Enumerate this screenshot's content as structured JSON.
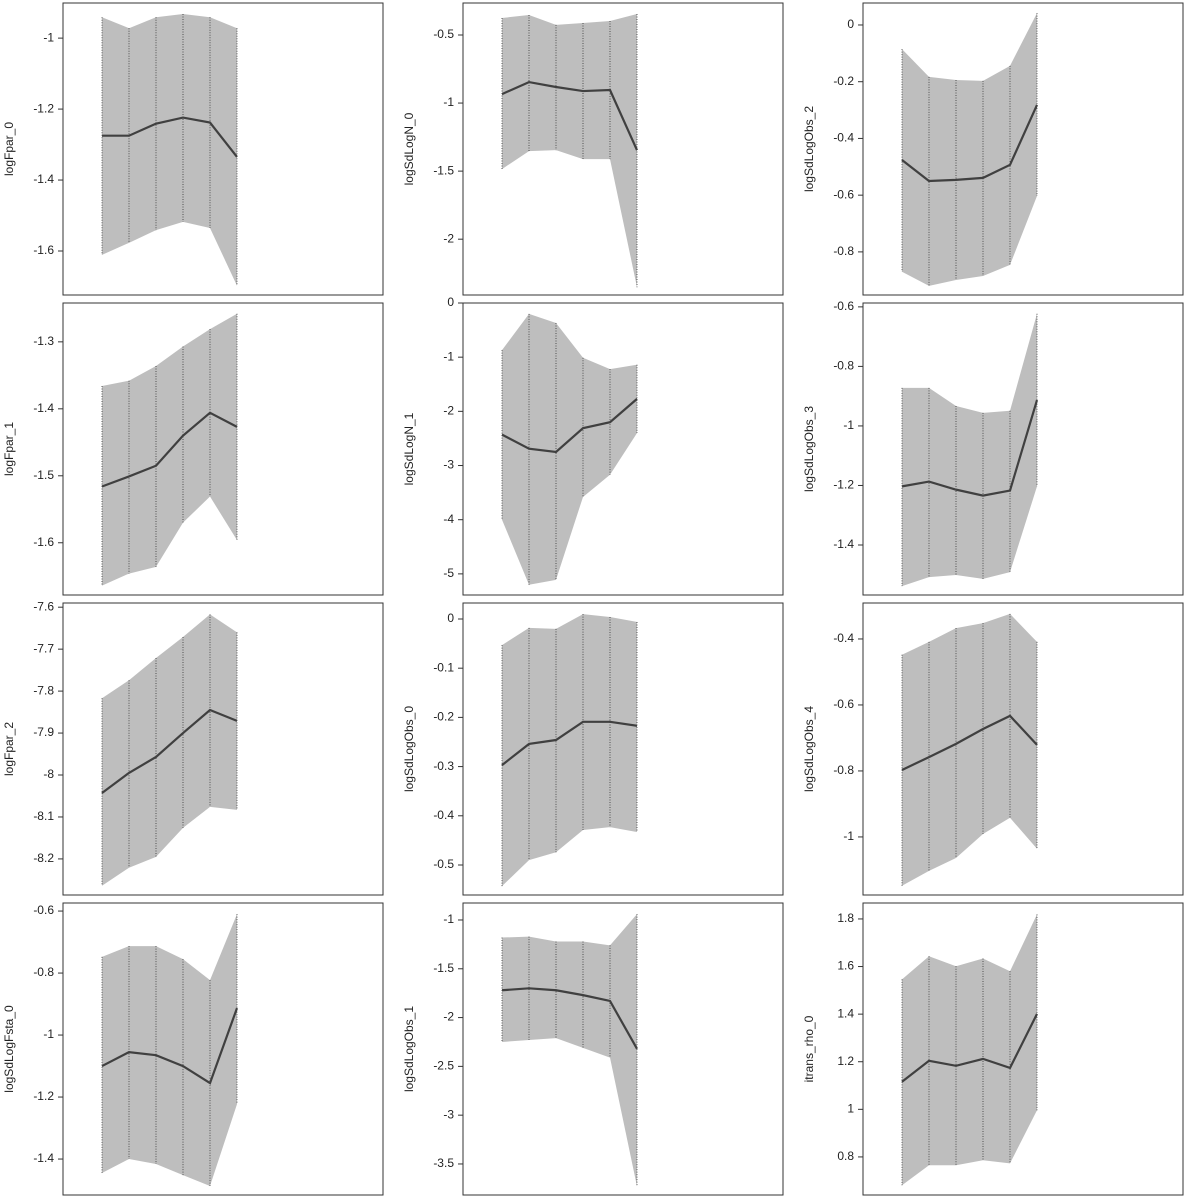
{
  "chart_data": [
    {
      "type": "band-line",
      "ylabel": "logFpar_0",
      "categories": [
        null,
        null,
        null,
        null,
        null,
        null
      ],
      "values": [
        -1.275,
        -1.275,
        -1.241,
        -1.224,
        -1.238,
        -1.335
      ],
      "upper": [
        -0.941,
        -0.972,
        -0.941,
        -0.932,
        -0.941,
        -0.972
      ],
      "lower": [
        -1.611,
        -1.577,
        -1.541,
        -1.518,
        -1.535,
        -1.698
      ],
      "ylim": [
        -1.724,
        -0.901
      ],
      "yticks": [
        -1.0,
        -1.2,
        -1.4,
        -1.6
      ],
      "color": "#404040",
      "band_color": "#bebebe"
    },
    {
      "type": "band-line",
      "ylabel": "logSdLogN_0",
      "categories": [
        null,
        null,
        null,
        null,
        null,
        null
      ],
      "values": [
        -0.934,
        -0.846,
        -0.882,
        -0.912,
        -0.904,
        -1.346
      ],
      "upper": [
        -0.375,
        -0.353,
        -0.426,
        -0.412,
        -0.397,
        -0.346
      ],
      "lower": [
        -1.485,
        -1.353,
        -1.346,
        -1.412,
        -1.412,
        -2.353
      ],
      "ylim": [
        -2.41,
        -0.265
      ],
      "yticks": [
        -0.5,
        -1.0,
        -1.5,
        -2.0
      ],
      "color": "#404040",
      "band_color": "#bebebe"
    },
    {
      "type": "band-line",
      "ylabel": "logSdLogObs_2",
      "categories": [
        null,
        null,
        null,
        null,
        null,
        null
      ],
      "values": [
        -0.476,
        -0.55,
        -0.546,
        -0.539,
        -0.493,
        -0.282
      ],
      "upper": [
        -0.085,
        -0.183,
        -0.194,
        -0.197,
        -0.144,
        0.042
      ],
      "lower": [
        -0.87,
        -0.92,
        -0.899,
        -0.885,
        -0.846,
        -0.603
      ],
      "ylim": [
        -0.952,
        0.0775
      ],
      "yticks": [
        0.0,
        -0.2,
        -0.4,
        -0.6,
        -0.8
      ],
      "color": "#404040",
      "band_color": "#bebebe"
    },
    {
      "type": "band-line",
      "ylabel": "logFpar_1",
      "categories": [
        null,
        null,
        null,
        null,
        null,
        null
      ],
      "values": [
        -1.516,
        -1.501,
        -1.485,
        -1.44,
        -1.406,
        -1.427
      ],
      "upper": [
        -1.366,
        -1.358,
        -1.336,
        -1.307,
        -1.281,
        -1.258
      ],
      "lower": [
        -1.664,
        -1.646,
        -1.636,
        -1.57,
        -1.531,
        -1.596
      ],
      "ylim": [
        -1.678,
        -1.242
      ],
      "yticks": [
        -1.3,
        -1.4,
        -1.5,
        -1.6
      ],
      "color": "#404040",
      "band_color": "#bebebe"
    },
    {
      "type": "band-line",
      "ylabel": "logSdLogN_1",
      "categories": [
        null,
        null,
        null,
        null,
        null,
        null
      ],
      "values": [
        -2.43,
        -2.69,
        -2.75,
        -2.31,
        -2.2,
        -1.77
      ],
      "upper": [
        -0.87,
        -0.2,
        -0.37,
        -1.01,
        -1.22,
        -1.14
      ],
      "lower": [
        -4.0,
        -5.2,
        -5.11,
        -3.58,
        -3.17,
        -2.4
      ],
      "ylim": [
        -5.39,
        0
      ],
      "yticks": [
        0,
        -1,
        -2,
        -3,
        -4,
        -5
      ],
      "color": "#404040",
      "band_color": "#bebebe"
    },
    {
      "type": "band-line",
      "ylabel": "logSdLogObs_3",
      "categories": [
        null,
        null,
        null,
        null,
        null,
        null
      ],
      "values": [
        -1.203,
        -1.187,
        -1.214,
        -1.234,
        -1.217,
        -0.913
      ],
      "upper": [
        -0.872,
        -0.872,
        -0.933,
        -0.956,
        -0.949,
        -0.623
      ],
      "lower": [
        -1.538,
        -1.508,
        -1.501,
        -1.514,
        -1.491,
        -1.203
      ],
      "ylim": [
        -1.568,
        -0.587
      ],
      "yticks": [
        -0.6,
        -0.8,
        -1.0,
        -1.2,
        -1.4
      ],
      "color": "#404040",
      "band_color": "#bebebe"
    },
    {
      "type": "band-line",
      "ylabel": "logFpar_2",
      "categories": [
        null,
        null,
        null,
        null,
        null,
        null
      ],
      "values": [
        -8.043,
        -7.995,
        -7.957,
        -7.9,
        -7.845,
        -7.871
      ],
      "upper": [
        -7.817,
        -7.774,
        -7.721,
        -7.671,
        -7.617,
        -7.66
      ],
      "lower": [
        -8.264,
        -8.221,
        -8.195,
        -8.126,
        -8.076,
        -8.083
      ],
      "ylim": [
        -8.286,
        -7.59
      ],
      "yticks": [
        -7.6,
        -7.7,
        -7.8,
        -7.9,
        -8.0,
        -8.1,
        -8.2
      ],
      "color": "#404040",
      "band_color": "#bebebe"
    },
    {
      "type": "band-line",
      "ylabel": "logSdLogObs_0",
      "categories": [
        null,
        null,
        null,
        null,
        null,
        null
      ],
      "values": [
        -0.297,
        -0.254,
        -0.246,
        -0.209,
        -0.209,
        -0.217
      ],
      "upper": [
        -0.053,
        -0.018,
        -0.02,
        0.01,
        0.004,
        -0.006
      ],
      "lower": [
        -0.543,
        -0.49,
        -0.474,
        -0.429,
        -0.423,
        -0.433
      ],
      "ylim": [
        -0.561,
        0.0325
      ],
      "yticks": [
        0.0,
        -0.1,
        -0.2,
        -0.3,
        -0.4,
        -0.5
      ],
      "color": "#404040",
      "band_color": "#bebebe"
    },
    {
      "type": "band-line",
      "ylabel": "logSdLogObs_4",
      "categories": [
        null,
        null,
        null,
        null,
        null,
        null
      ],
      "values": [
        -0.797,
        -0.758,
        -0.718,
        -0.673,
        -0.633,
        -0.721
      ],
      "upper": [
        -0.448,
        -0.409,
        -0.367,
        -0.352,
        -0.324,
        -0.409
      ],
      "lower": [
        -1.148,
        -1.103,
        -1.064,
        -0.991,
        -0.942,
        -1.036
      ],
      "ylim": [
        -1.176,
        -0.291
      ],
      "yticks": [
        -0.4,
        -0.6,
        -0.8,
        -1.0
      ],
      "color": "#404040",
      "band_color": "#bebebe"
    },
    {
      "type": "band-line",
      "ylabel": "logSdLogFsta_0",
      "categories": [
        null,
        null,
        null,
        null,
        null,
        null
      ],
      "values": [
        -1.1,
        -1.055,
        -1.065,
        -1.1,
        -1.155,
        -0.913
      ],
      "upper": [
        -0.748,
        -0.713,
        -0.713,
        -0.755,
        -0.823,
        -0.61
      ],
      "lower": [
        -1.445,
        -1.4,
        -1.416,
        -1.452,
        -1.487,
        -1.223
      ],
      "ylim": [
        -1.516,
        -0.574
      ],
      "yticks": [
        -0.6,
        -0.8,
        -1.0,
        -1.2,
        -1.4
      ],
      "color": "#404040",
      "band_color": "#bebebe"
    },
    {
      "type": "band-line",
      "ylabel": "logSdLogObs_1",
      "categories": [
        null,
        null,
        null,
        null,
        null,
        null
      ],
      "values": [
        -1.72,
        -1.7,
        -1.72,
        -1.77,
        -1.83,
        -2.32
      ],
      "upper": [
        -1.18,
        -1.17,
        -1.22,
        -1.22,
        -1.26,
        -0.94
      ],
      "lower": [
        -2.25,
        -2.23,
        -2.21,
        -2.31,
        -2.41,
        -3.73
      ],
      "ylim": [
        -3.818,
        -0.826
      ],
      "yticks": [
        -1.0,
        -1.5,
        -2.0,
        -2.5,
        -3.0,
        -3.5
      ],
      "color": "#404040",
      "band_color": "#bebebe"
    },
    {
      "type": "band-line",
      "ylabel": "itrans_rho_0",
      "categories": [
        null,
        null,
        null,
        null,
        null,
        null
      ],
      "values": [
        1.116,
        1.204,
        1.183,
        1.212,
        1.174,
        1.401
      ],
      "upper": [
        1.546,
        1.643,
        1.601,
        1.634,
        1.58,
        1.819
      ],
      "lower": [
        0.681,
        0.765,
        0.765,
        0.786,
        0.773,
        0.996
      ],
      "ylim": [
        0.64,
        1.867
      ],
      "yticks": [
        1.8,
        1.6,
        1.4,
        1.2,
        1.0,
        0.8
      ],
      "color": "#404040",
      "band_color": "#bebebe"
    }
  ]
}
